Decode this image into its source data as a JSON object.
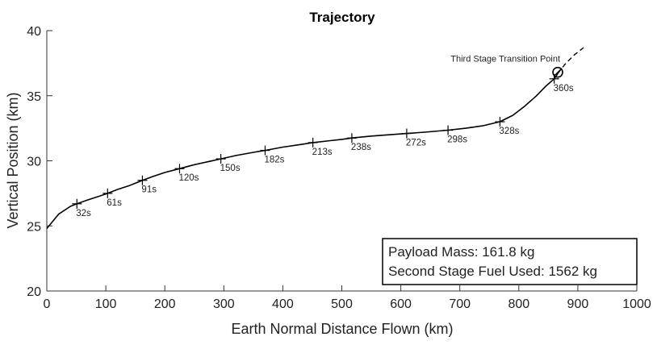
{
  "chart_data": {
    "type": "line",
    "title": "Trajectory",
    "xlabel": "Earth Normal Distance Flown (km)",
    "ylabel": "Vertical Position (km)",
    "xlim": [
      0,
      1000
    ],
    "ylim": [
      20,
      40
    ],
    "xticks": [
      0,
      100,
      200,
      300,
      400,
      500,
      600,
      700,
      800,
      900,
      1000
    ],
    "yticks": [
      20,
      25,
      30,
      35,
      40
    ],
    "grid": false,
    "trajectory": {
      "x": [
        0,
        20,
        40,
        51,
        70,
        90,
        103,
        120,
        140,
        162,
        180,
        200,
        225,
        250,
        275,
        295,
        320,
        350,
        370,
        400,
        430,
        451,
        480,
        500,
        517,
        550,
        580,
        610,
        640,
        680,
        710,
        740,
        768,
        790,
        810,
        830,
        845,
        860,
        866
      ],
      "y": [
        24.8,
        25.9,
        26.5,
        26.7,
        27.0,
        27.3,
        27.5,
        27.8,
        28.1,
        28.5,
        28.8,
        29.1,
        29.4,
        29.7,
        29.95,
        30.15,
        30.4,
        30.65,
        30.8,
        31.05,
        31.25,
        31.4,
        31.55,
        31.65,
        31.75,
        31.9,
        32.0,
        32.1,
        32.2,
        32.35,
        32.5,
        32.7,
        33.0,
        33.5,
        34.2,
        35.0,
        35.7,
        36.3,
        36.7
      ]
    },
    "extension": {
      "x": [
        866,
        878,
        893,
        910
      ],
      "y": [
        36.7,
        37.4,
        38.1,
        38.7
      ]
    },
    "time_markers": [
      {
        "x": 51,
        "y": 26.7,
        "label": "32s"
      },
      {
        "x": 103,
        "y": 27.5,
        "label": "61s"
      },
      {
        "x": 162,
        "y": 28.5,
        "label": "91s"
      },
      {
        "x": 225,
        "y": 29.4,
        "label": "120s"
      },
      {
        "x": 295,
        "y": 30.15,
        "label": "150s"
      },
      {
        "x": 370,
        "y": 30.8,
        "label": "182s"
      },
      {
        "x": 451,
        "y": 31.4,
        "label": "213s"
      },
      {
        "x": 517,
        "y": 31.75,
        "label": "238s"
      },
      {
        "x": 610,
        "y": 32.1,
        "label": "272s"
      },
      {
        "x": 680,
        "y": 32.35,
        "label": "298s"
      },
      {
        "x": 768,
        "y": 33.0,
        "label": "328s"
      },
      {
        "x": 860,
        "y": 36.3,
        "label": "360s"
      }
    ],
    "transition_point": {
      "x": 866,
      "y": 36.8,
      "label": "Third Stage Transition Point"
    },
    "info_box": {
      "payload_mass": "Payload Mass: 161.8 kg",
      "fuel_used": "Second Stage Fuel Used: 1562 kg",
      "placement": "bottom-right"
    }
  }
}
